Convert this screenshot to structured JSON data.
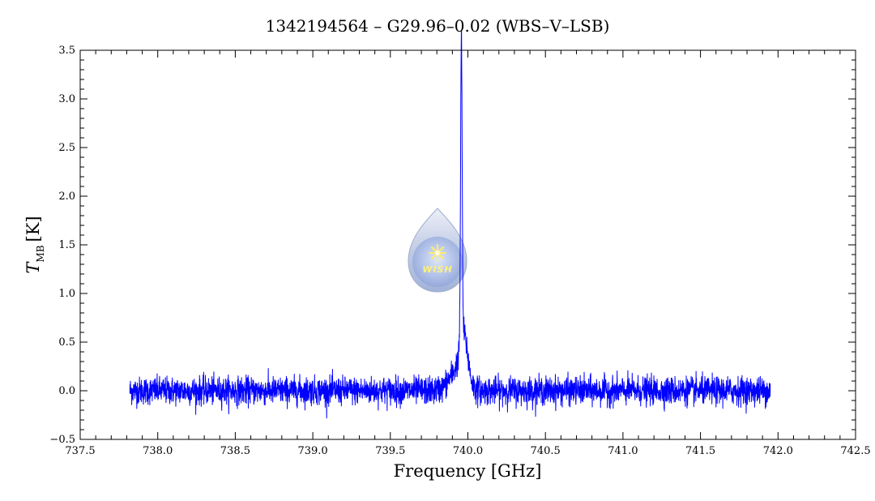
{
  "chart_data": {
    "type": "line",
    "title": "1342194564 – G29.96–0.02 (WBS–V–LSB)",
    "xlabel": "Frequency [GHz]",
    "ylabel_main": "T",
    "ylabel_sub": "MB",
    "ylabel_unit": "[K]",
    "xlim": [
      737.5,
      742.5
    ],
    "ylim": [
      -0.5,
      3.5
    ],
    "x_ticks": [
      737.5,
      738.0,
      738.5,
      739.0,
      739.5,
      740.0,
      740.5,
      741.0,
      741.5,
      742.0,
      742.5
    ],
    "x_tick_labels": [
      "737.5",
      "738.0",
      "738.5",
      "739.0",
      "739.5",
      "740.0",
      "740.5",
      "741.0",
      "741.5",
      "742.0",
      "742.5"
    ],
    "y_ticks": [
      -0.5,
      0.0,
      0.5,
      1.0,
      1.5,
      2.0,
      2.5,
      3.0,
      3.5
    ],
    "y_tick_labels": [
      "−0.5",
      "0.0",
      "0.5",
      "1.0",
      "1.5",
      "2.0",
      "2.5",
      "3.0",
      "3.5"
    ],
    "grid": false,
    "legend": "none",
    "series_color": "#0000ff",
    "series": [
      {
        "x_range": [
          737.82,
          741.95
        ],
        "noise_rms": 0.07,
        "baseline": 0.0,
        "lines": [
          {
            "center": 739.958,
            "amplitude": 3.1,
            "fwhm": 0.012
          },
          {
            "center": 739.975,
            "amplitude": 0.45,
            "fwhm": 0.06
          },
          {
            "center": 739.93,
            "amplitude": 0.2,
            "fwhm": 0.12
          }
        ]
      }
    ],
    "annotation": {
      "logo_text": "WISH",
      "logo_x": 739.81,
      "logo_y": 1.35
    }
  }
}
